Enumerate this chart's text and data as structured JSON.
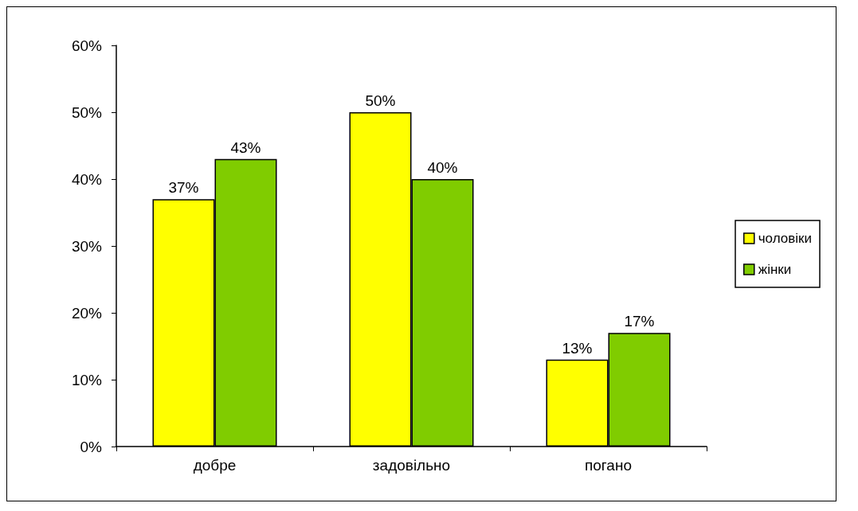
{
  "chart_data": {
    "type": "bar",
    "categories": [
      "добре",
      "задовільно",
      "погано"
    ],
    "series": [
      {
        "name": "чоловіки",
        "color": "#ffff00",
        "values": [
          37,
          50,
          13
        ],
        "value_labels": [
          "37%",
          "50%",
          "13%"
        ]
      },
      {
        "name": "жінки",
        "color": "#80cc00",
        "values": [
          43,
          40,
          17
        ],
        "value_labels": [
          "43%",
          "40%",
          "17%"
        ]
      }
    ],
    "ylim": [
      0,
      60
    ],
    "yticks": [
      {
        "value": 0,
        "label": "0%"
      },
      {
        "value": 10,
        "label": "10%"
      },
      {
        "value": 20,
        "label": "20%"
      },
      {
        "value": 30,
        "label": "30%"
      },
      {
        "value": 40,
        "label": "40%"
      },
      {
        "value": 50,
        "label": "50%"
      },
      {
        "value": 60,
        "label": "60%"
      }
    ],
    "grid": false,
    "legend": "right"
  }
}
